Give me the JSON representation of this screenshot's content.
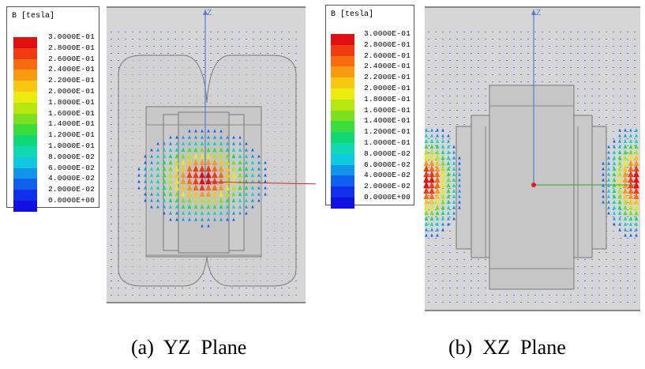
{
  "panels": [
    {
      "id": "a",
      "legend_title": "B [tesla]",
      "caption": "(a)  YZ  Plane",
      "axis_label": "Z"
    },
    {
      "id": "b",
      "legend_title": "B [tesla]",
      "caption": "(b)  XZ  Plane",
      "axis_label": "Z"
    }
  ],
  "legend_values": [
    "3.0000E-01",
    "2.8000E-01",
    "2.6000E-01",
    "2.4000E-01",
    "2.2000E-01",
    "2.0000E-01",
    "1.8000E-01",
    "1.6000E-01",
    "1.4000E-01",
    "1.2000E-01",
    "1.0000E-01",
    "8.0000E-02",
    "6.0000E-02",
    "4.0000E-02",
    "2.0000E-02",
    "0.0000E+00"
  ],
  "legend_colors": [
    "#e01010",
    "#f03a10",
    "#f86a10",
    "#fa9a10",
    "#f8c810",
    "#eaec10",
    "#b6e810",
    "#7ce020",
    "#3cdc3c",
    "#10d876",
    "#10d8b2",
    "#10c8e0",
    "#1094ec",
    "#1060f0",
    "#1030ec",
    "#1010e0"
  ]
}
